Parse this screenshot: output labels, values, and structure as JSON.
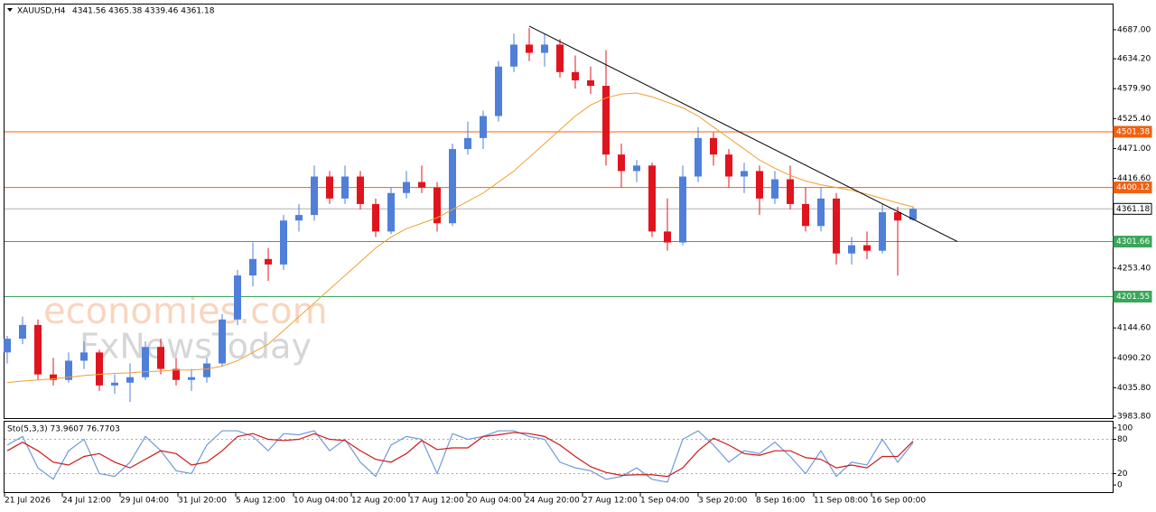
{
  "chart_data": {
    "type": "candlestick",
    "title": "XAUUSD,H4",
    "subtitle": "4341.56 4365.38 4339.46 4361.18",
    "watermark": [
      "economies.com",
      "FxNewsToday"
    ],
    "x_labels": [
      "21 Jul 2026",
      "24 Jul 12:00",
      "29 Jul 04:00",
      "31 Jul 20:00",
      "5 Aug 12:00",
      "10 Aug 04:00",
      "12 Aug 20:00",
      "17 Aug 12:00",
      "20 Aug 04:00",
      "24 Aug 20:00",
      "27 Aug 12:00",
      "1 Sep 04:00",
      "3 Sep 20:00",
      "8 Sep 16:00",
      "11 Sep 08:00",
      "16 Sep 00:00"
    ],
    "up_color": "#4f7fd9",
    "down_color": "#e0141e",
    "open": [
      4100,
      4125,
      4150,
      4060,
      4050,
      4085,
      4100,
      4040,
      4045,
      4055,
      4110,
      4070,
      4050,
      4055,
      4080,
      4160,
      4240,
      4270,
      4260,
      4340,
      4350,
      4420,
      4380,
      4420,
      4370,
      4320,
      4390,
      4410,
      4400,
      4335,
      4470,
      4490,
      4530,
      4620,
      4660,
      4645,
      4660,
      4610,
      4595,
      4585,
      4460,
      4430,
      4440,
      4320,
      4300,
      4420,
      4490,
      4460,
      4420,
      4430,
      4380,
      4415,
      4370,
      4330,
      4380,
      4280,
      4295,
      4285,
      4355,
      4341.56
    ],
    "high": [
      4130,
      4165,
      4160,
      4090,
      4100,
      4120,
      4105,
      4060,
      4080,
      4120,
      4125,
      4090,
      4070,
      4090,
      4170,
      4250,
      4300,
      4290,
      4350,
      4370,
      4440,
      4430,
      4440,
      4430,
      4380,
      4400,
      4430,
      4440,
      4410,
      4480,
      4520,
      4540,
      4630,
      4680,
      4690,
      4680,
      4670,
      4640,
      4620,
      4650,
      4480,
      4450,
      4445,
      4380,
      4440,
      4510,
      4500,
      4470,
      4445,
      4440,
      4430,
      4440,
      4400,
      4400,
      4390,
      4310,
      4320,
      4370,
      4365,
      4365.38
    ],
    "low": [
      4080,
      4115,
      4050,
      4040,
      4045,
      4070,
      4030,
      4025,
      4010,
      4050,
      4060,
      4040,
      4030,
      4045,
      4075,
      4150,
      4220,
      4230,
      4250,
      4320,
      4340,
      4370,
      4370,
      4360,
      4310,
      4315,
      4380,
      4390,
      4320,
      4330,
      4460,
      4470,
      4520,
      4610,
      4630,
      4620,
      4600,
      4580,
      4570,
      4440,
      4400,
      4410,
      4310,
      4285,
      4295,
      4410,
      4440,
      4400,
      4390,
      4350,
      4370,
      4360,
      4320,
      4320,
      4260,
      4260,
      4270,
      4280,
      4240,
      4339.46
    ],
    "close": [
      4125,
      4150,
      4060,
      4050,
      4085,
      4100,
      4040,
      4045,
      4055,
      4110,
      4070,
      4050,
      4055,
      4080,
      4160,
      4240,
      4270,
      4260,
      4340,
      4350,
      4420,
      4380,
      4420,
      4370,
      4320,
      4390,
      4410,
      4400,
      4335,
      4470,
      4490,
      4530,
      4620,
      4660,
      4645,
      4660,
      4610,
      4595,
      4585,
      4460,
      4430,
      4440,
      4320,
      4300,
      4420,
      4490,
      4460,
      4420,
      4430,
      4380,
      4415,
      4370,
      4330,
      4380,
      4280,
      4295,
      4285,
      4355,
      4340,
      4361.18
    ],
    "ma": {
      "color": "#f0a030",
      "values": [
        4045,
        4048,
        4050,
        4052,
        4055,
        4058,
        4060,
        4062,
        4063,
        4065,
        4066,
        4068,
        4068,
        4070,
        4075,
        4085,
        4100,
        4115,
        4140,
        4165,
        4190,
        4215,
        4240,
        4265,
        4290,
        4310,
        4325,
        4335,
        4345,
        4360,
        4375,
        4390,
        4410,
        4430,
        4455,
        4480,
        4505,
        4530,
        4550,
        4563,
        4570,
        4572,
        4565,
        4555,
        4545,
        4530,
        4510,
        4490,
        4470,
        4450,
        4435,
        4422,
        4412,
        4405,
        4400,
        4395,
        4388,
        4380,
        4372,
        4365
      ]
    },
    "trendline": {
      "color": "#000000",
      "values": [
        4693.6,
        4301.8
      ]
    },
    "levels": [
      {
        "value": 4501.38,
        "label": "4501.38",
        "color": "#f06010"
      },
      {
        "value": 4400.12,
        "label": "4400.12",
        "color": "#f06010"
      },
      {
        "value": 4361.18,
        "label": "4361.18",
        "color": "#b0b0b0"
      },
      {
        "value": 4301.66,
        "label": "4301.66",
        "color": "#3aa65a"
      },
      {
        "value": 4201.55,
        "label": "4201.55",
        "color": "#3aa65a"
      }
    ],
    "ylim": [
      3980.6,
      4732.9
    ],
    "yticks": [
      {
        "value": 4687,
        "label": "4687.00"
      },
      {
        "value": 4634.2,
        "label": "4634.20"
      },
      {
        "value": 4579.9,
        "label": "4579.90"
      },
      {
        "value": 4525.4,
        "label": "4525.40"
      },
      {
        "value": 4471,
        "label": "4471.00"
      },
      {
        "value": 4416.6,
        "label": "4416.60"
      },
      {
        "value": 4253.4,
        "label": "4253.40"
      },
      {
        "value": 4144.6,
        "label": "4144.60"
      },
      {
        "value": 4090.2,
        "label": "4090.20"
      },
      {
        "value": 4035.8,
        "label": "4035.80"
      },
      {
        "value": 3983.8,
        "label": "3983.80"
      }
    ],
    "stochastic": {
      "title": "Sto(5,3,3) 73.9607 76.7703",
      "ylim": [
        -12.5,
        110.9
      ],
      "yticks": [
        100,
        80,
        20,
        0
      ],
      "series": [
        {
          "color": "#6f9ad8",
          "values": [
            70,
            85,
            30,
            10,
            60,
            80,
            20,
            15,
            40,
            85,
            60,
            25,
            20,
            70,
            95,
            95,
            85,
            60,
            90,
            88,
            95,
            60,
            80,
            40,
            15,
            70,
            85,
            80,
            20,
            90,
            80,
            85,
            95,
            95,
            85,
            80,
            40,
            30,
            25,
            10,
            15,
            30,
            10,
            5,
            80,
            95,
            70,
            40,
            60,
            55,
            75,
            50,
            20,
            60,
            15,
            40,
            35,
            80,
            40,
            73.9607
          ]
        },
        {
          "color": "#d01818",
          "values": [
            60,
            75,
            60,
            40,
            35,
            50,
            55,
            40,
            30,
            45,
            60,
            55,
            35,
            40,
            60,
            85,
            90,
            80,
            78,
            80,
            90,
            80,
            78,
            60,
            45,
            40,
            55,
            78,
            62,
            65,
            65,
            85,
            88,
            92,
            90,
            85,
            70,
            50,
            32,
            22,
            17,
            18,
            18,
            15,
            30,
            60,
            82,
            70,
            55,
            52,
            60,
            60,
            48,
            45,
            30,
            35,
            30,
            50,
            50,
            76.7703
          ]
        }
      ]
    }
  }
}
